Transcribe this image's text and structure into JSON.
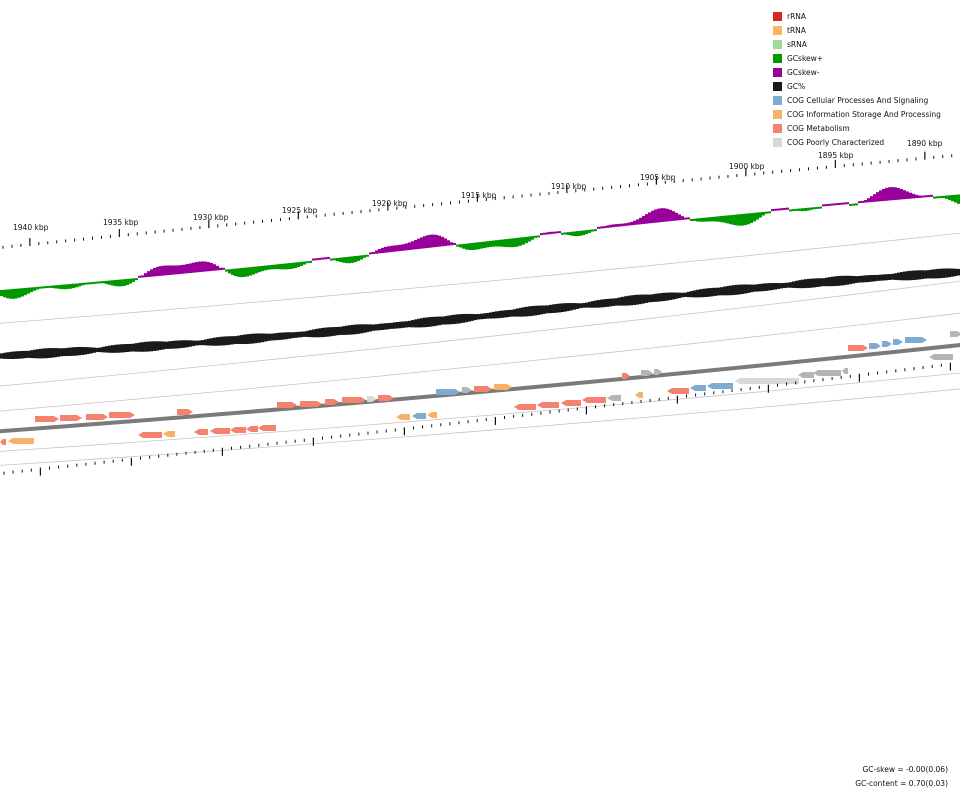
{
  "colors": {
    "rRNA": "#d62728",
    "tRNA": "#fdb462",
    "sRNA": "#a1d99b",
    "gcskew_plus": "#009900",
    "gcskew_minus": "#990099",
    "gc_percent": "#1a1a1a",
    "cog_cellular": "#7fabd0",
    "cog_information": "#f7b267",
    "cog_metabolism": "#f4826f",
    "cog_poorly": "#d8d8d8",
    "cog_unassigned": "#b5b5b5",
    "backbone": "#7a7a7a"
  },
  "legend": [
    {
      "label": "rRNA",
      "color": "#d62728"
    },
    {
      "label": "tRNA",
      "color": "#fdb462"
    },
    {
      "label": "sRNA",
      "color": "#a1d99b"
    },
    {
      "label": "GCskew+",
      "color": "#009900"
    },
    {
      "label": "GCskew-",
      "color": "#990099"
    },
    {
      "label": "GC%",
      "color": "#1a1a1a"
    },
    {
      "label": "COG Cellular Processes And Signaling",
      "color": "#7fabd0"
    },
    {
      "label": "COG Information Storage And Processing",
      "color": "#f7b267"
    },
    {
      "label": "COG Metabolism",
      "color": "#f4826f"
    },
    {
      "label": "COG Poorly Characterized",
      "color": "#d8d8d8"
    }
  ],
  "kbp_labels": [
    "1940 kbp",
    "1935 kbp",
    "1930 kbp",
    "1925 kbp",
    "1920 kbp",
    "1915 kbp",
    "1910 kbp",
    "1905 kbp",
    "1900 kbp",
    "1895 kbp",
    "1890 kbp"
  ],
  "stats": {
    "gc_skew": "GC-skew = -0.00(0.06)",
    "gc_content": "GC-content = 0.70(0.03)"
  }
}
